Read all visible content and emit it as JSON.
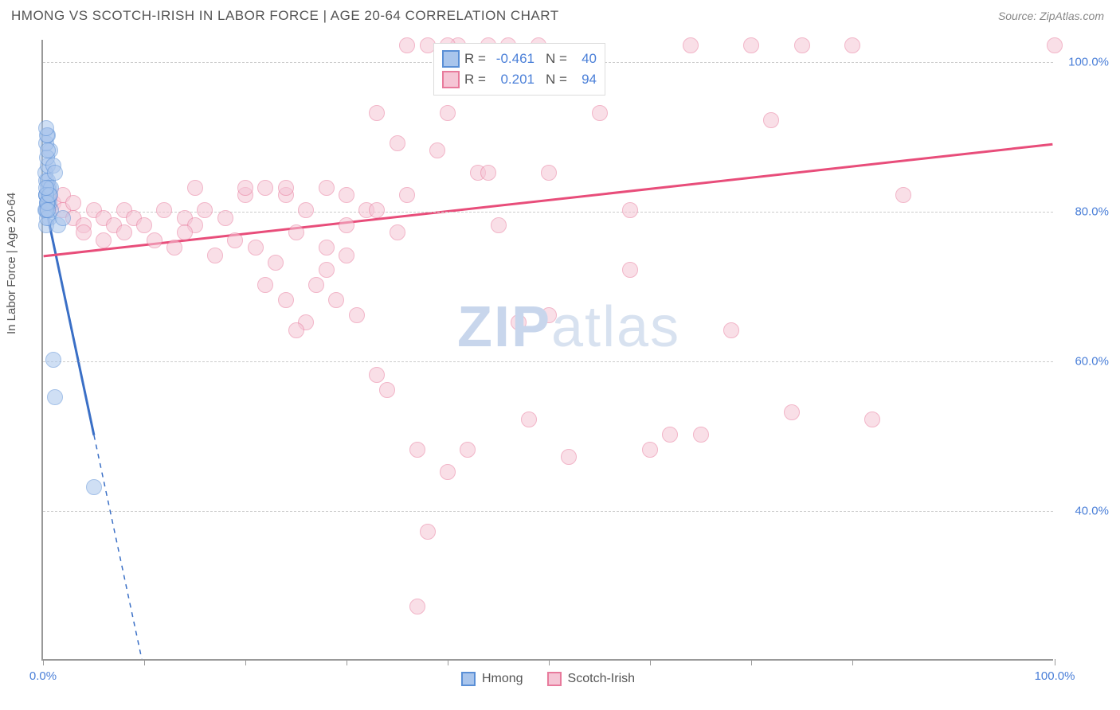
{
  "title": "HMONG VS SCOTCH-IRISH IN LABOR FORCE | AGE 20-64 CORRELATION CHART",
  "source": "Source: ZipAtlas.com",
  "ylabel": "In Labor Force | Age 20-64",
  "watermark_1": "ZIP",
  "watermark_2": "atlas",
  "chart": {
    "type": "scatter",
    "background_color": "#ffffff",
    "grid_color": "#cccccc",
    "axis_color": "#999999",
    "tick_color": "#4a7fd8",
    "xlim": [
      0,
      100
    ],
    "ylim": [
      20,
      103
    ],
    "yticks": [
      40,
      60,
      80,
      100
    ],
    "ytick_labels": [
      "40.0%",
      "60.0%",
      "80.0%",
      "100.0%"
    ],
    "xticks": [
      0,
      10,
      20,
      30,
      40,
      50,
      60,
      70,
      80,
      100
    ],
    "xtick_labels_shown": {
      "0": "0.0%",
      "100": "100.0%"
    },
    "marker_radius": 10,
    "marker_opacity": 0.55
  },
  "series": {
    "hmong": {
      "label": "Hmong",
      "color_fill": "#a9c5ec",
      "color_stroke": "#5a8fd6",
      "R": "-0.461",
      "N": "40",
      "trend": {
        "x1": 0,
        "y1": 82,
        "x2": 5,
        "y2": 50,
        "dashed_x2": 11,
        "dashed_y2": 12,
        "color": "#3a6fc6",
        "width": 3
      },
      "points": [
        [
          0.3,
          82
        ],
        [
          0.5,
          81
        ],
        [
          0.4,
          80
        ],
        [
          0.6,
          83
        ],
        [
          0.3,
          84
        ],
        [
          0.2,
          85
        ],
        [
          0.5,
          86
        ],
        [
          0.7,
          88
        ],
        [
          0.4,
          87
        ],
        [
          0.3,
          89
        ],
        [
          0.5,
          90
        ],
        [
          0.6,
          79
        ],
        [
          0.8,
          80
        ],
        [
          0.4,
          81
        ],
        [
          0.3,
          82
        ],
        [
          0.5,
          83
        ],
        [
          0.2,
          80
        ],
        [
          0.6,
          81
        ],
        [
          0.3,
          78
        ],
        [
          0.4,
          79
        ],
        [
          0.5,
          81
        ],
        [
          0.7,
          82
        ],
        [
          0.3,
          80
        ],
        [
          0.5,
          84
        ],
        [
          1.0,
          86
        ],
        [
          1.2,
          85
        ],
        [
          0.8,
          83
        ],
        [
          0.4,
          90
        ],
        [
          0.3,
          91
        ],
        [
          0.5,
          88
        ],
        [
          1.5,
          78
        ],
        [
          2.0,
          79
        ],
        [
          1.0,
          60
        ],
        [
          1.2,
          55
        ],
        [
          0.3,
          82
        ],
        [
          0.4,
          81
        ],
        [
          0.5,
          80
        ],
        [
          0.6,
          82
        ],
        [
          5.0,
          43
        ],
        [
          0.3,
          83
        ]
      ]
    },
    "scotch": {
      "label": "Scotch-Irish",
      "color_fill": "#f5c5d5",
      "color_stroke": "#e87a9c",
      "R": "0.201",
      "N": "94",
      "trend": {
        "x1": 0,
        "y1": 74,
        "x2": 100,
        "y2": 89,
        "color": "#e84d7a",
        "width": 3
      },
      "points": [
        [
          1,
          81
        ],
        [
          2,
          80
        ],
        [
          3,
          79
        ],
        [
          2,
          82
        ],
        [
          4,
          78
        ],
        [
          3,
          81
        ],
        [
          5,
          80
        ],
        [
          6,
          79
        ],
        [
          4,
          77
        ],
        [
          7,
          78
        ],
        [
          8,
          80
        ],
        [
          6,
          76
        ],
        [
          9,
          79
        ],
        [
          10,
          78
        ],
        [
          8,
          77
        ],
        [
          12,
          80
        ],
        [
          11,
          76
        ],
        [
          14,
          79
        ],
        [
          13,
          75
        ],
        [
          15,
          78
        ],
        [
          16,
          80
        ],
        [
          14,
          77
        ],
        [
          18,
          79
        ],
        [
          17,
          74
        ],
        [
          20,
          82
        ],
        [
          19,
          76
        ],
        [
          22,
          83
        ],
        [
          21,
          75
        ],
        [
          24,
          82
        ],
        [
          23,
          73
        ],
        [
          25,
          77
        ],
        [
          26,
          80
        ],
        [
          22,
          70
        ],
        [
          28,
          75
        ],
        [
          24,
          68
        ],
        [
          30,
          78
        ],
        [
          26,
          65
        ],
        [
          32,
          80
        ],
        [
          28,
          72
        ],
        [
          29,
          68
        ],
        [
          27,
          70
        ],
        [
          30,
          74
        ],
        [
          31,
          66
        ],
        [
          25,
          64
        ],
        [
          35,
          77
        ],
        [
          33,
          58
        ],
        [
          36,
          82
        ],
        [
          34,
          56
        ],
        [
          38,
          102
        ],
        [
          40,
          93
        ],
        [
          37,
          48
        ],
        [
          41,
          102
        ],
        [
          39,
          88
        ],
        [
          42,
          48
        ],
        [
          40,
          45
        ],
        [
          43,
          85
        ],
        [
          44,
          102
        ],
        [
          37,
          27
        ],
        [
          45,
          78
        ],
        [
          46,
          102
        ],
        [
          40,
          102
        ],
        [
          38,
          37
        ],
        [
          48,
          52
        ],
        [
          50,
          66
        ],
        [
          49,
          102
        ],
        [
          52,
          47
        ],
        [
          58,
          72
        ],
        [
          60,
          48
        ],
        [
          62,
          50
        ],
        [
          65,
          50
        ],
        [
          64,
          102
        ],
        [
          70,
          102
        ],
        [
          68,
          64
        ],
        [
          72,
          92
        ],
        [
          75,
          102
        ],
        [
          74,
          53
        ],
        [
          80,
          102
        ],
        [
          82,
          52
        ],
        [
          85,
          82
        ],
        [
          100,
          102
        ],
        [
          36,
          102
        ],
        [
          33,
          93
        ],
        [
          35,
          89
        ],
        [
          28,
          83
        ],
        [
          24,
          83
        ],
        [
          20,
          83
        ],
        [
          15,
          83
        ],
        [
          50,
          85
        ],
        [
          44,
          85
        ],
        [
          30,
          82
        ],
        [
          33,
          80
        ],
        [
          55,
          93
        ],
        [
          58,
          80
        ],
        [
          47,
          65
        ]
      ]
    }
  },
  "bottom_legend": [
    {
      "key": "hmong"
    },
    {
      "key": "scotch"
    }
  ]
}
